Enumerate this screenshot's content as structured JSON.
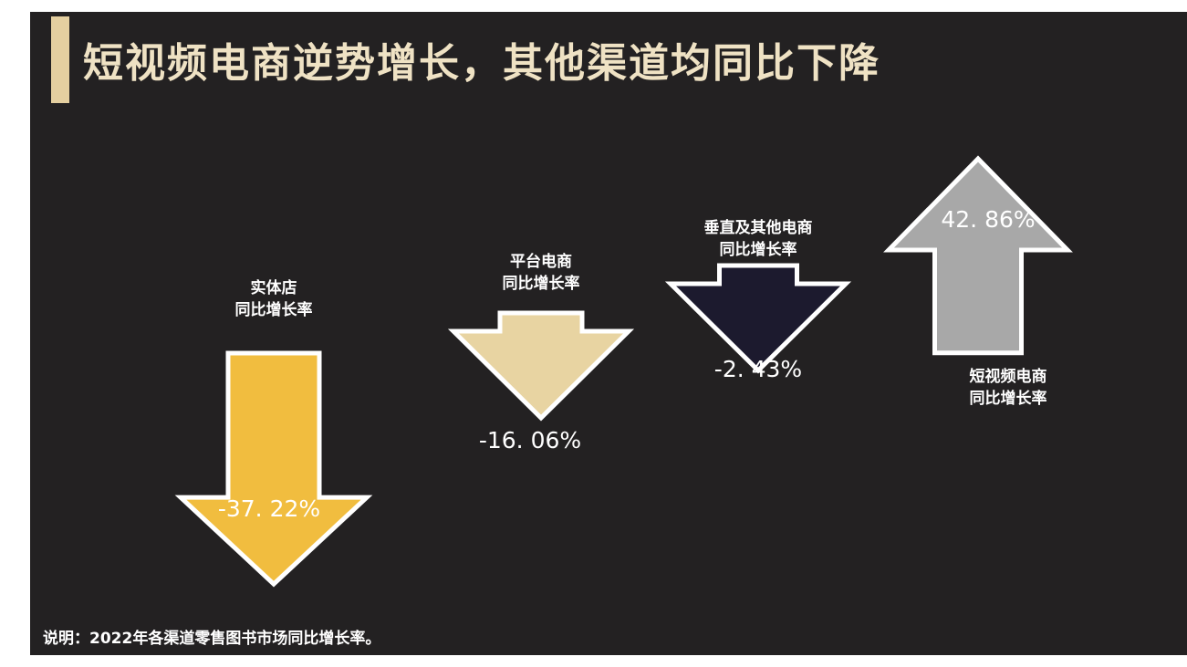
{
  "title": "短视频电商逆势增长，其他渠道均同比下降",
  "note": "说明：2022年各渠道零售图书市场同比增长率。",
  "chart_data": {
    "type": "bar",
    "unit": "%",
    "categories": [
      [
        "实体店",
        "同比增长率"
      ],
      [
        "平台电商",
        "同比增长率"
      ],
      [
        "垂直及其他电商",
        "同比增长率"
      ],
      [
        "短视频电商",
        "同比增长率"
      ]
    ],
    "values": [
      -37.22,
      -16.06,
      -2.43,
      42.86
    ],
    "value_labels": [
      "-37. 22%",
      "-16. 06%",
      "-2. 43%",
      "42. 86%"
    ],
    "colors": [
      "#f1bd3f",
      "#e8d4a2",
      "#1c1a2e",
      "#a8a8a8"
    ],
    "outline_color": "#ffffff"
  }
}
